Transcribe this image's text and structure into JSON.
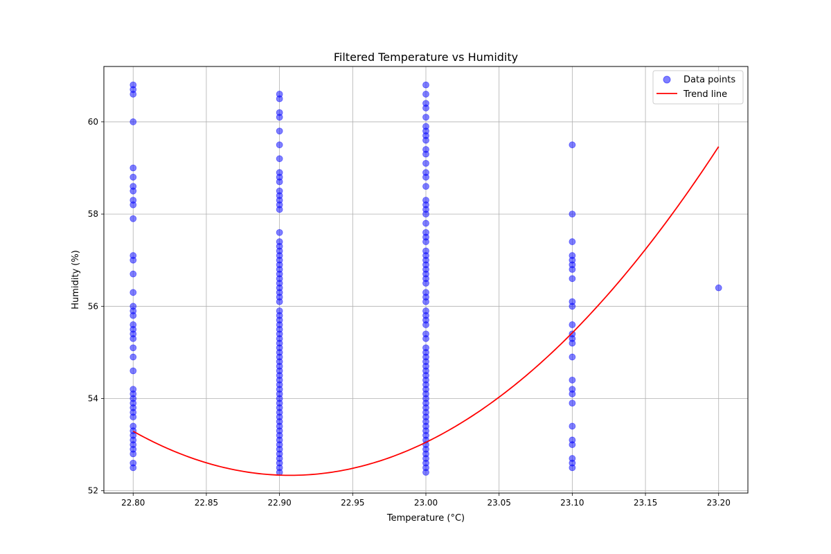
{
  "chart_data": {
    "type": "scatter",
    "title": "Filtered Temperature vs Humidity",
    "xlabel": "Temperature (°C)",
    "ylabel": "Humidity (%)",
    "xlim": [
      22.78,
      23.22
    ],
    "ylim": [
      51.95,
      61.2
    ],
    "xticks": [
      22.8,
      22.85,
      22.9,
      22.95,
      23.0,
      23.05,
      23.1,
      23.15,
      23.2
    ],
    "xtick_labels": [
      "22.80",
      "22.85",
      "22.90",
      "22.95",
      "23.00",
      "23.05",
      "23.10",
      "23.15",
      "23.20"
    ],
    "yticks": [
      52,
      54,
      56,
      58,
      60
    ],
    "ytick_labels": [
      "52",
      "54",
      "56",
      "58",
      "60"
    ],
    "grid": true,
    "legend_position": "top-right",
    "series": [
      {
        "name": "Data points",
        "kind": "scatter",
        "color": "#0000ff",
        "alpha": 0.5,
        "groups": [
          {
            "x": 22.8,
            "y": [
              60.8,
              60.7,
              60.6,
              60.0,
              59.0,
              58.8,
              58.6,
              58.5,
              58.3,
              58.2,
              57.9,
              57.1,
              57.0,
              56.7,
              56.3,
              56.0,
              55.9,
              55.8,
              55.6,
              55.5,
              55.4,
              55.3,
              55.1,
              54.9,
              54.6,
              54.2,
              54.1,
              54.0,
              53.9,
              53.8,
              53.7,
              53.6,
              53.4,
              53.3,
              53.2,
              53.1,
              53.0,
              52.9,
              52.8,
              52.6,
              52.5
            ]
          },
          {
            "x": 22.9,
            "y": [
              60.6,
              60.5,
              60.2,
              60.1,
              59.8,
              59.5,
              59.2,
              58.9,
              58.8,
              58.7,
              58.5,
              58.4,
              58.3,
              58.2,
              58.1,
              57.6,
              57.4,
              57.3,
              57.2,
              57.1,
              57.0,
              56.9,
              56.8,
              56.7,
              56.6,
              56.5,
              56.4,
              56.3,
              56.2,
              56.1,
              55.9,
              55.8,
              55.7,
              55.6,
              55.5,
              55.4,
              55.3,
              55.2,
              55.1,
              55.0,
              54.9,
              54.8,
              54.7,
              54.6,
              54.5,
              54.4,
              54.3,
              54.2,
              54.1,
              54.0,
              53.9,
              53.8,
              53.7,
              53.6,
              53.5,
              53.4,
              53.3,
              53.2,
              53.1,
              53.0,
              52.9,
              52.8,
              52.7,
              52.6,
              52.5,
              52.4
            ]
          },
          {
            "x": 23.0,
            "y": [
              60.8,
              60.6,
              60.4,
              60.3,
              60.1,
              59.9,
              59.8,
              59.7,
              59.6,
              59.4,
              59.3,
              59.1,
              58.9,
              58.8,
              58.6,
              58.3,
              58.2,
              58.1,
              58.0,
              57.8,
              57.6,
              57.5,
              57.4,
              57.2,
              57.1,
              57.0,
              56.9,
              56.8,
              56.7,
              56.6,
              56.5,
              56.3,
              56.2,
              56.1,
              55.9,
              55.8,
              55.7,
              55.6,
              55.4,
              55.3,
              55.1,
              55.0,
              54.9,
              54.8,
              54.7,
              54.6,
              54.5,
              54.4,
              54.3,
              54.2,
              54.1,
              54.0,
              53.9,
              53.8,
              53.7,
              53.6,
              53.5,
              53.4,
              53.3,
              53.2,
              53.1,
              53.0,
              52.9,
              52.8,
              52.7,
              52.6,
              52.5,
              52.4
            ]
          },
          {
            "x": 23.1,
            "y": [
              59.5,
              58.0,
              57.4,
              57.1,
              57.0,
              56.9,
              56.8,
              56.6,
              56.1,
              56.0,
              55.6,
              55.4,
              55.3,
              55.2,
              54.9,
              54.4,
              54.2,
              54.1,
              53.9,
              53.4,
              53.1,
              53.0,
              52.7,
              52.6,
              52.5
            ]
          },
          {
            "x": 23.2,
            "y": [
              56.4
            ]
          }
        ]
      },
      {
        "name": "Trend line",
        "kind": "line",
        "color": "#ff0000",
        "x_range": [
          22.8,
          23.2
        ],
        "polynomial": {
          "a": 83.16,
          "b": -3809.93,
          "c": 43689.8
        }
      }
    ]
  }
}
